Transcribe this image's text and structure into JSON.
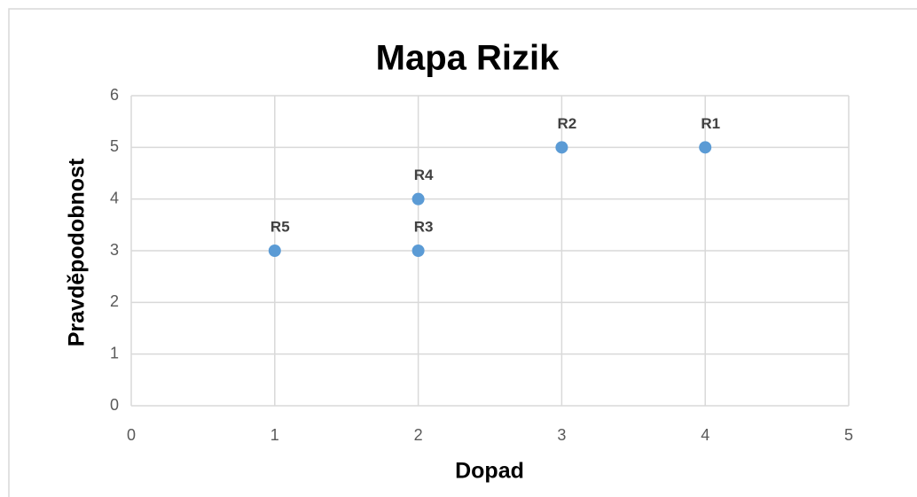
{
  "chart_data": {
    "type": "scatter",
    "title": "Mapa Rizik",
    "x_label": "Dopad",
    "y_label": "Pravděpodobnost",
    "point_labels": [
      "R1",
      "R2",
      "R3",
      "R4",
      "R5"
    ],
    "x": [
      4,
      3,
      2,
      2,
      1
    ],
    "values": [
      5,
      5,
      3,
      4,
      3
    ],
    "color": "#5b9bd5",
    "xlim": [
      0,
      5
    ],
    "xticks": [
      0,
      1,
      2,
      3,
      4,
      5
    ],
    "ylim": [
      0,
      6
    ],
    "yticks": [
      0,
      1,
      2,
      3,
      4,
      5,
      6
    ],
    "grid": true
  }
}
